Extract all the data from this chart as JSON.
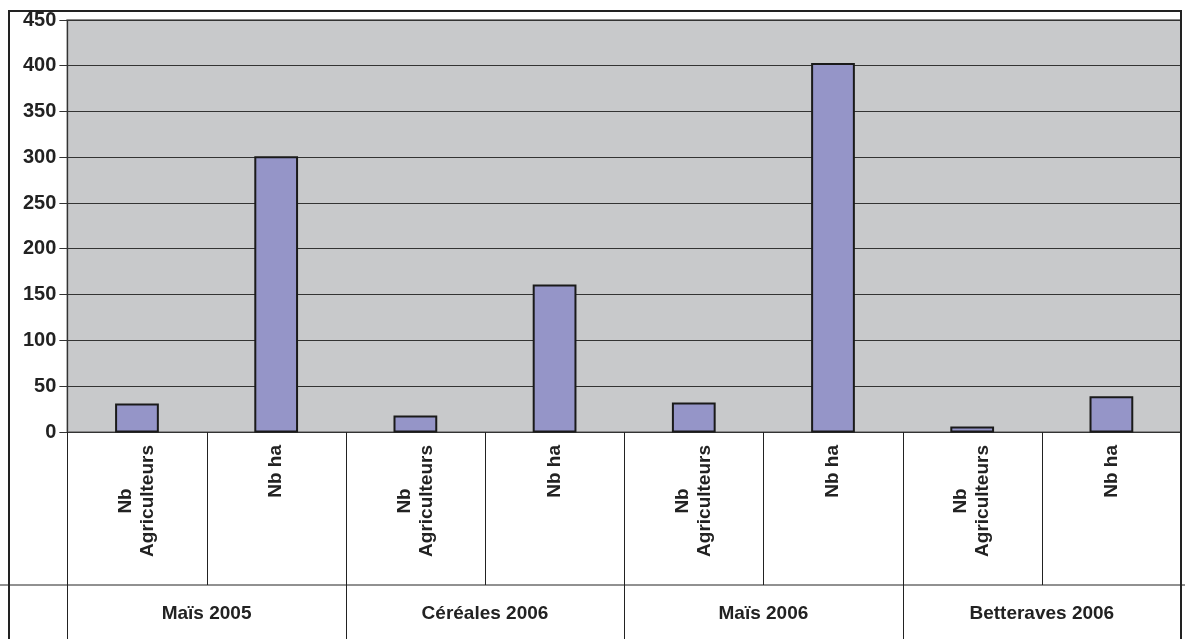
{
  "chart_data": {
    "type": "bar",
    "categories": [
      "Nb Agriculteurs",
      "Nb ha",
      "Nb Agriculteurs",
      "Nb ha",
      "Nb Agriculteurs",
      "Nb ha",
      "Nb Agriculteurs",
      "Nb ha"
    ],
    "values": [
      30,
      300,
      17,
      160,
      31,
      402,
      5,
      38
    ],
    "color": "#9595c8",
    "ylim": [
      0,
      450
    ],
    "yticks": [
      0,
      50,
      100,
      150,
      200,
      250,
      300,
      350,
      400,
      450
    ],
    "grid": "y",
    "annotations": [
      "Maïs 2005",
      "Céréales 2006",
      "Maïs 2006",
      "Betteraves 2006"
    ]
  }
}
